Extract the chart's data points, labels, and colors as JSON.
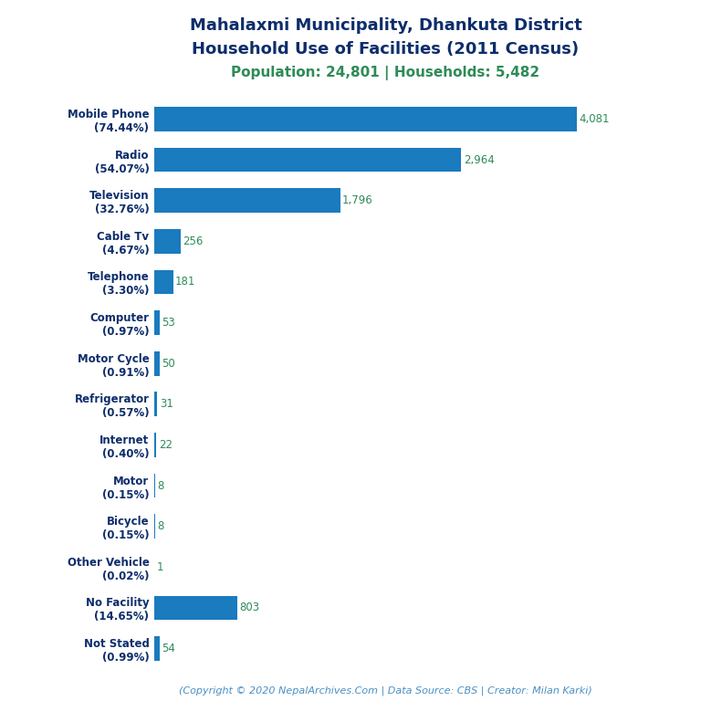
{
  "title_line1": "Mahalaxmi Municipality, Dhankuta District",
  "title_line2": "Household Use of Facilities (2011 Census)",
  "subtitle": "Population: 24,801 | Households: 5,482",
  "copyright": "(Copyright © 2020 NepalArchives.Com | Data Source: CBS | Creator: Milan Karki)",
  "categories": [
    "Mobile Phone\n(74.44%)",
    "Radio\n(54.07%)",
    "Television\n(32.76%)",
    "Cable Tv\n(4.67%)",
    "Telephone\n(3.30%)",
    "Computer\n(0.97%)",
    "Motor Cycle\n(0.91%)",
    "Refrigerator\n(0.57%)",
    "Internet\n(0.40%)",
    "Motor\n(0.15%)",
    "Bicycle\n(0.15%)",
    "Other Vehicle\n(0.02%)",
    "No Facility\n(14.65%)",
    "Not Stated\n(0.99%)"
  ],
  "values": [
    4081,
    2964,
    1796,
    256,
    181,
    53,
    50,
    31,
    22,
    8,
    8,
    1,
    803,
    54
  ],
  "bar_color": "#1a7bbf",
  "value_color": "#2e8b57",
  "title_color": "#0d2d6b",
  "subtitle_color": "#2e8b57",
  "copyright_color": "#4a90c4",
  "background_color": "#ffffff",
  "xlim": [
    0,
    4600
  ],
  "title_fontsize": 13,
  "subtitle_fontsize": 11,
  "label_fontsize": 8.5,
  "value_fontsize": 8.5,
  "copyright_fontsize": 8
}
